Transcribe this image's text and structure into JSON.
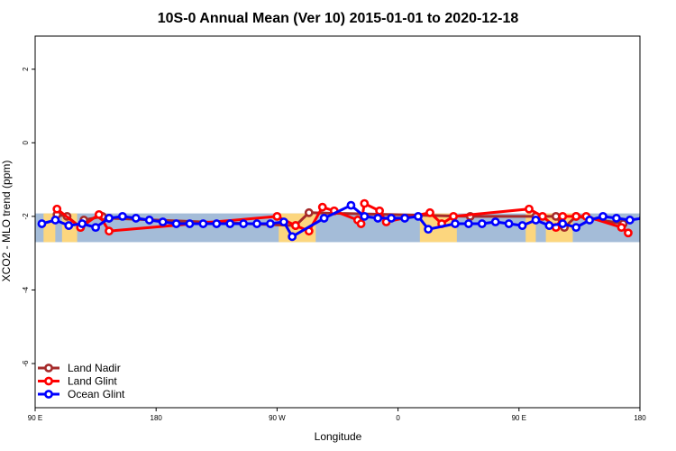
{
  "chart_data": {
    "type": "line",
    "title": "10S-0 Annual Mean (Ver 10)   2015-01-01 to 2020-12-18",
    "xlabel": "Longitude",
    "ylabel": "XCO2 - MLO trend (ppm)",
    "xlim": [
      90,
      450
    ],
    "ylim": [
      -7.2,
      2.9
    ],
    "x_ticks": [
      {
        "value": 90,
        "label": "90 E"
      },
      {
        "value": 162,
        "label": "180"
      },
      {
        "value": 234,
        "label": "90 W"
      },
      {
        "value": 306,
        "label": "0"
      },
      {
        "value": 378,
        "label": "90 E"
      },
      {
        "value": 450,
        "label": "180"
      }
    ],
    "y_ticks": [
      {
        "value": 2,
        "label": "2"
      },
      {
        "value": 0,
        "label": "0"
      },
      {
        "value": -2,
        "label": "-2"
      },
      {
        "value": -4,
        "label": "-4"
      },
      {
        "value": -6,
        "label": "-6"
      }
    ],
    "grid": false,
    "legend_position": "bottom-left",
    "background_map": {
      "band_lat_range": [
        -10,
        0
      ],
      "ocean_color": "#a4bcd8",
      "land_color": "#fcd67e",
      "land_segments": [
        [
          95,
          102
        ],
        [
          106,
          115
        ],
        [
          235,
          257
        ],
        [
          319,
          341
        ],
        [
          382,
          388
        ],
        [
          394,
          410
        ]
      ]
    },
    "series": [
      {
        "name": "Land Nadir",
        "color": "#a52a2a",
        "x": [
          103,
          109,
          117,
          119,
          130,
          134,
          245,
          253,
          349,
          388,
          400,
          405,
          412,
          440
        ],
        "values": [
          -1.95,
          -2.0,
          -2.3,
          -2.1,
          -2.0,
          -2.05,
          -2.25,
          -1.9,
          -2.0,
          -2.0,
          -2.0,
          -2.3,
          -2.0,
          -2.2
        ]
      },
      {
        "name": "Land Glint",
        "color": "#ff0000",
        "x": [
          103,
          117,
          128,
          134,
          234,
          245,
          253,
          261,
          268,
          282,
          284,
          286,
          295,
          299,
          325,
          332,
          339,
          384,
          392,
          400,
          404,
          412,
          418,
          439,
          443
        ],
        "values": [
          -1.8,
          -2.3,
          -1.95,
          -2.4,
          -2.0,
          -2.25,
          -2.4,
          -1.75,
          -1.85,
          -2.1,
          -2.2,
          -1.65,
          -1.85,
          -2.15,
          -1.9,
          -2.2,
          -2.0,
          -1.8,
          -2.0,
          -2.3,
          -2.0,
          -2.0,
          -2.0,
          -2.3,
          -2.45
        ]
      },
      {
        "name": "Ocean Glint",
        "color": "#0000ff",
        "x": [
          94,
          102,
          110,
          118,
          126,
          134,
          142,
          150,
          158,
          166,
          174,
          182,
          190,
          198,
          206,
          214,
          222,
          230,
          238,
          243,
          262,
          278,
          286,
          294,
          302,
          310,
          318,
          324,
          340,
          348,
          356,
          364,
          372,
          380,
          388,
          396,
          404,
          412,
          420,
          428,
          436,
          444,
          452,
          460,
          468
        ],
        "values": [
          -2.2,
          -2.1,
          -2.25,
          -2.2,
          -2.3,
          -2.05,
          -2.0,
          -2.05,
          -2.1,
          -2.15,
          -2.2,
          -2.2,
          -2.2,
          -2.2,
          -2.2,
          -2.2,
          -2.2,
          -2.2,
          -2.15,
          -2.55,
          -2.05,
          -1.7,
          -2.0,
          -2.05,
          -2.05,
          -2.05,
          -2.0,
          -2.35,
          -2.2,
          -2.2,
          -2.2,
          -2.15,
          -2.2,
          -2.25,
          -2.1,
          -2.25,
          -2.2,
          -2.3,
          -2.1,
          -2.0,
          -2.05,
          -2.1,
          -2.05,
          -2.05,
          -2.05
        ]
      }
    ]
  }
}
